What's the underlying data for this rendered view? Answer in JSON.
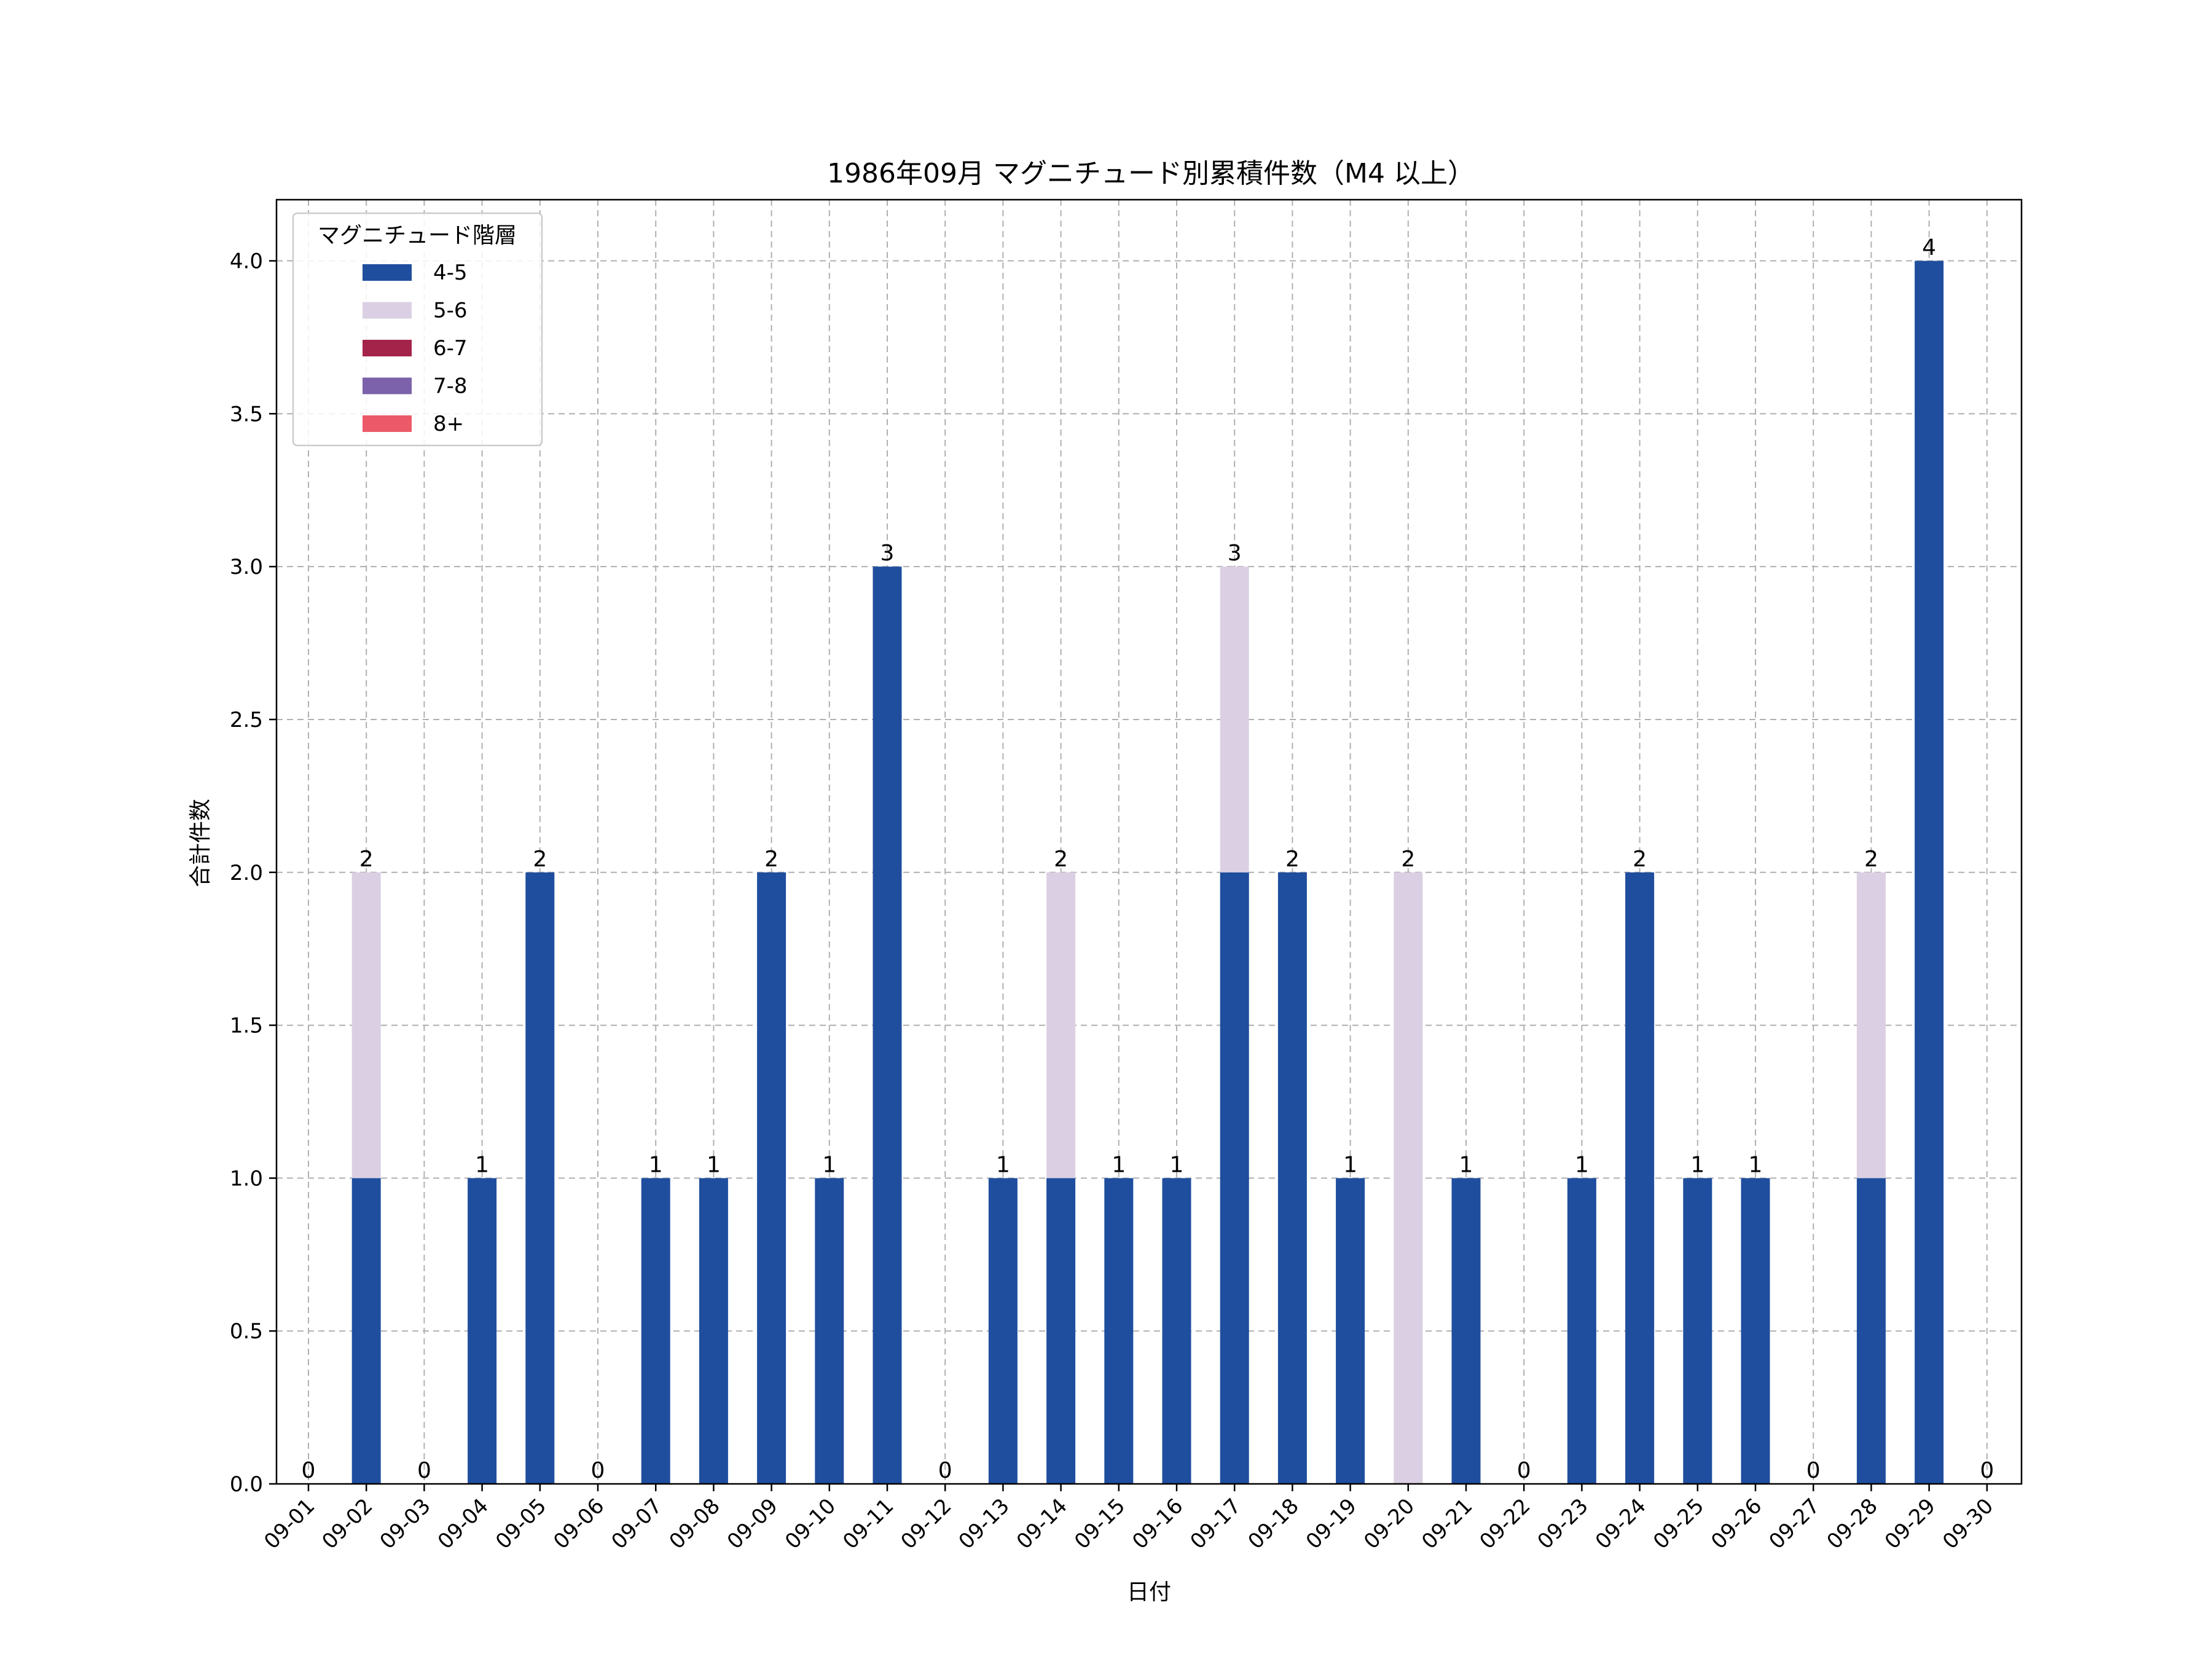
{
  "chart_data": {
    "type": "bar",
    "stacked": true,
    "title": "1986年09月 マグニチュード別累積件数（M4 以上）",
    "xlabel": "日付",
    "ylabel": "合計件数",
    "ylim": [
      0,
      4.2
    ],
    "yticks": [
      "0.0",
      "0.5",
      "1.0",
      "1.5",
      "2.0",
      "2.5",
      "3.0",
      "3.5",
      "4.0"
    ],
    "grid": true,
    "legend": {
      "title": "マグニチュード階層",
      "placement": "top-left"
    },
    "categories": [
      "09-01",
      "09-02",
      "09-03",
      "09-04",
      "09-05",
      "09-06",
      "09-07",
      "09-08",
      "09-09",
      "09-10",
      "09-11",
      "09-12",
      "09-13",
      "09-14",
      "09-15",
      "09-16",
      "09-17",
      "09-18",
      "09-19",
      "09-20",
      "09-21",
      "09-22",
      "09-23",
      "09-24",
      "09-25",
      "09-26",
      "09-27",
      "09-28",
      "09-29",
      "09-30"
    ],
    "series": [
      {
        "name": "4-5",
        "color": "#1f4e9e",
        "values": [
          0,
          1,
          0,
          1,
          2,
          0,
          1,
          1,
          2,
          1,
          3,
          0,
          1,
          1,
          1,
          1,
          2,
          2,
          1,
          0,
          1,
          0,
          1,
          2,
          1,
          1,
          0,
          1,
          4,
          0
        ]
      },
      {
        "name": "5-6",
        "color": "#dbd0e3",
        "values": [
          0,
          1,
          0,
          0,
          0,
          0,
          0,
          0,
          0,
          0,
          0,
          0,
          0,
          1,
          0,
          0,
          1,
          0,
          0,
          2,
          0,
          0,
          0,
          0,
          0,
          0,
          0,
          1,
          0,
          0
        ]
      },
      {
        "name": "6-7",
        "color": "#a4234a",
        "values": [
          0,
          0,
          0,
          0,
          0,
          0,
          0,
          0,
          0,
          0,
          0,
          0,
          0,
          0,
          0,
          0,
          0,
          0,
          0,
          0,
          0,
          0,
          0,
          0,
          0,
          0,
          0,
          0,
          0,
          0
        ]
      },
      {
        "name": "7-8",
        "color": "#7b62aa",
        "values": [
          0,
          0,
          0,
          0,
          0,
          0,
          0,
          0,
          0,
          0,
          0,
          0,
          0,
          0,
          0,
          0,
          0,
          0,
          0,
          0,
          0,
          0,
          0,
          0,
          0,
          0,
          0,
          0,
          0,
          0
        ]
      },
      {
        "name": "8+",
        "color": "#ec5a6a",
        "values": [
          0,
          0,
          0,
          0,
          0,
          0,
          0,
          0,
          0,
          0,
          0,
          0,
          0,
          0,
          0,
          0,
          0,
          0,
          0,
          0,
          0,
          0,
          0,
          0,
          0,
          0,
          0,
          0,
          0,
          0
        ]
      }
    ],
    "totals": [
      0,
      2,
      0,
      1,
      2,
      0,
      1,
      1,
      2,
      1,
      3,
      0,
      1,
      2,
      1,
      1,
      3,
      2,
      1,
      2,
      1,
      0,
      1,
      2,
      1,
      1,
      0,
      2,
      4,
      0
    ]
  }
}
